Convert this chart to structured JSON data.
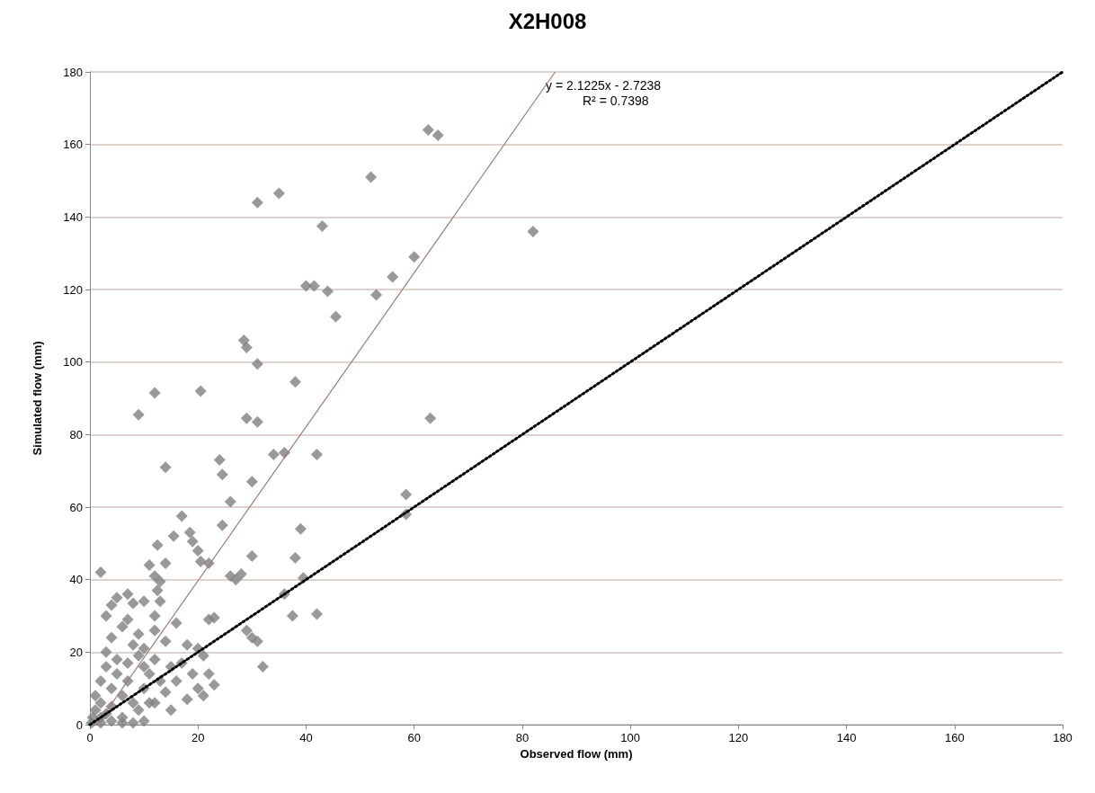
{
  "chart_data": {
    "type": "scatter",
    "title": "X2H008",
    "xlabel": "Observed flow (mm)",
    "ylabel": "Simulated flow (mm)",
    "xlim": [
      0,
      180
    ],
    "ylim": [
      0,
      180
    ],
    "xticks": [
      0,
      20,
      40,
      60,
      80,
      100,
      120,
      140,
      160,
      180
    ],
    "yticks": [
      0,
      20,
      40,
      60,
      80,
      100,
      120,
      140,
      160,
      180
    ],
    "grid": "y",
    "marker": "diamond",
    "annotations": [
      "y = 2.1225x - 2.7238",
      "R² = 0.7398"
    ],
    "series": [
      {
        "color": "#7f7f7f",
        "x": [
          62.6,
          64.4,
          52,
          31,
          35,
          43,
          82,
          60,
          56,
          40,
          41.5,
          44,
          53,
          45.5,
          28.5,
          29,
          31,
          38,
          12,
          20.5,
          9,
          29,
          31,
          63,
          34,
          36,
          42,
          24,
          14,
          24.5,
          30,
          58.5,
          26,
          58.5,
          17,
          24.5,
          39,
          15.5,
          18.5,
          19,
          12.5,
          20,
          30,
          38,
          20.5,
          22,
          11,
          14,
          2,
          12,
          26,
          28,
          27,
          39.5,
          13,
          36,
          12.5,
          5,
          7,
          4,
          10,
          8,
          13,
          12,
          37.5,
          42,
          23,
          22,
          16,
          3,
          29,
          30,
          31,
          32,
          6,
          9,
          4,
          8,
          10,
          14,
          18,
          20,
          21,
          19,
          15,
          12,
          16,
          20,
          21,
          18,
          12,
          14,
          10,
          7,
          5,
          3,
          2,
          1,
          1,
          0.5,
          0.3,
          2,
          4,
          6,
          8,
          10,
          9,
          6,
          4,
          3,
          2,
          5,
          7,
          11,
          13,
          17,
          22,
          23,
          15,
          11,
          8,
          6,
          4,
          3,
          9,
          12,
          7,
          10,
          2
        ],
        "values": [
          164,
          162.5,
          151,
          144,
          146.5,
          137.5,
          136,
          129,
          123.5,
          121,
          121,
          119.5,
          118.5,
          112.5,
          106,
          104,
          99.5,
          94.5,
          91.5,
          92,
          85.5,
          84.5,
          83.5,
          84.5,
          74.5,
          75,
          74.5,
          73,
          71,
          69,
          67,
          63.5,
          61.5,
          58,
          57.5,
          55,
          54,
          52,
          53,
          50.5,
          49.5,
          48,
          46.5,
          46,
          45,
          44.5,
          44,
          44.5,
          42,
          41,
          41,
          41.5,
          40,
          40.5,
          39.5,
          36,
          37,
          35,
          36,
          33,
          34,
          33.5,
          34,
          30,
          30,
          30.5,
          29.5,
          29,
          28,
          30,
          26,
          24,
          23,
          16,
          27,
          25,
          24,
          22,
          21,
          23,
          22,
          21,
          19,
          14,
          16,
          18,
          12,
          10,
          8,
          7,
          6,
          9,
          10,
          12,
          18,
          16,
          12,
          8,
          4,
          2,
          0.5,
          0.5,
          1,
          2,
          0.5,
          1,
          4,
          8,
          5,
          3,
          6,
          14,
          17,
          14,
          12,
          17,
          14,
          11,
          4,
          6,
          6,
          0.5,
          10,
          20,
          19,
          26,
          29,
          16,
          2
        ]
      },
      {
        "type": "line",
        "color": "#9e7b6e",
        "line_style": "solid",
        "marker": "none",
        "x": [
          1.3,
          86.1
        ],
        "values": [
          0,
          180
        ]
      },
      {
        "type": "line",
        "color": "#000000",
        "line_style": "dotted",
        "marker": "none",
        "x": [
          0,
          180
        ],
        "values": [
          0,
          180
        ]
      }
    ]
  }
}
